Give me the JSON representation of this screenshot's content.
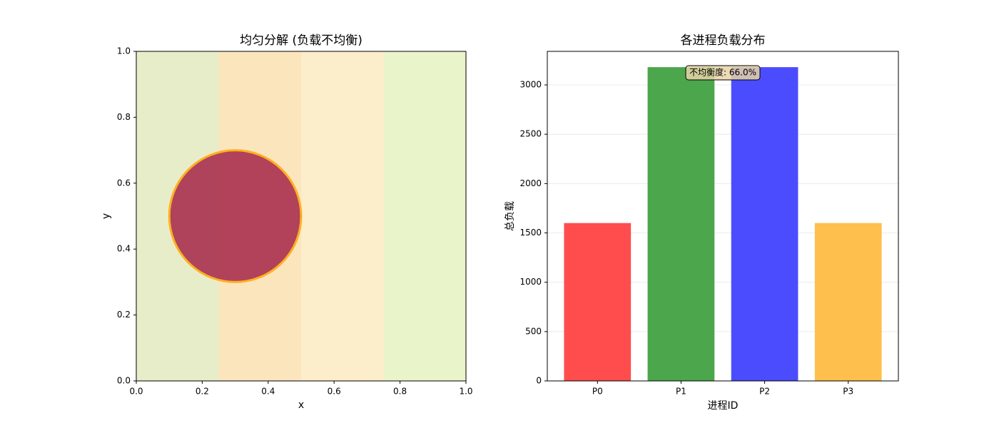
{
  "chart_data": [
    {
      "type": "partition",
      "title": "均匀分解 (负载不均衡)",
      "xlabel": "x",
      "ylabel": "y",
      "xlim": [
        0,
        1
      ],
      "ylim": [
        0,
        1
      ],
      "xticks": [
        {
          "value": 0,
          "label": "0.0"
        },
        0.2,
        0.4,
        0.6,
        0.8,
        {
          "value": 1,
          "label": "1.0"
        }
      ],
      "yticks": [
        {
          "value": 0,
          "label": "0.0"
        },
        0.2,
        0.4,
        0.6,
        0.8,
        {
          "value": 1,
          "label": "1.0"
        }
      ],
      "bins": [
        0,
        0.25,
        0.5,
        0.75,
        1
      ],
      "colors": [
        "#e8edc9",
        "#fbe5bd",
        "#fcedcb",
        "#e9f4cb"
      ],
      "circle": {
        "cx": 0.3,
        "cy": 0.5,
        "r": 0.2,
        "color": "#a8304f",
        "edge": "#ffb020"
      }
    },
    {
      "type": "bar",
      "title": "各进程负载分布",
      "xlabel": "进程ID",
      "ylabel": "总负载",
      "categories": [
        "P0",
        "P1",
        "P2",
        "P3"
      ],
      "values": [
        1600,
        3180,
        3180,
        1600
      ],
      "colors": [
        "#ff4c4c",
        "#4ca64c",
        "#4c4cff",
        "#ffbf4c"
      ],
      "ylim": [
        0,
        3340
      ],
      "yticks": [
        0,
        500,
        1000,
        1500,
        2000,
        2500,
        3000
      ],
      "grid": true,
      "annotation": "不均衡度: 66.0%"
    }
  ]
}
